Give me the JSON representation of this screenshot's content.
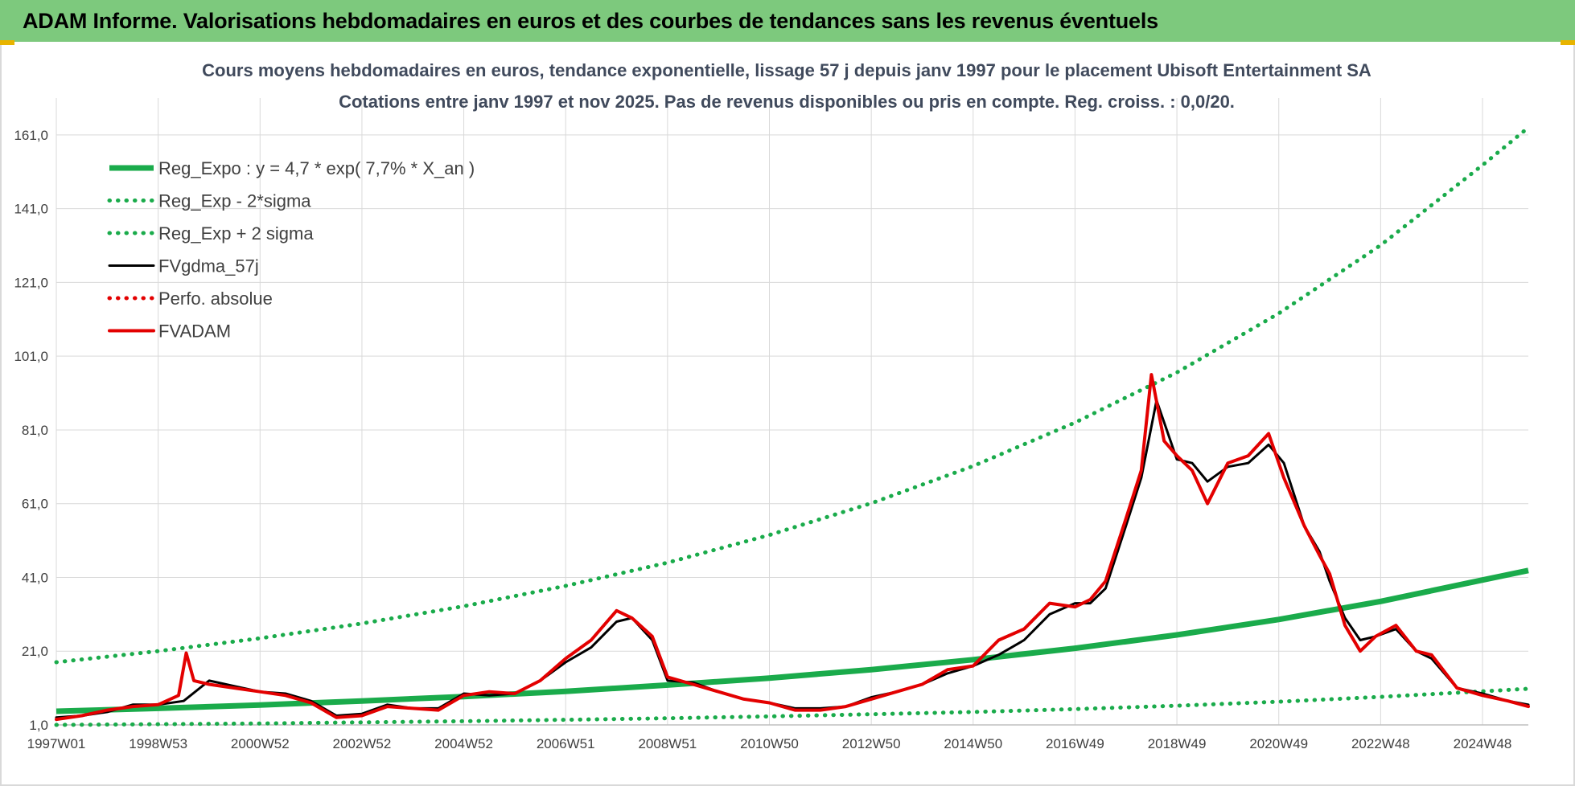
{
  "banner": {
    "title": "ADAM Informe. Valorisations hebdomadaires en euros et des courbes de tendances sans les revenus éventuels",
    "background": "#7dc97d"
  },
  "chart_data": {
    "type": "line",
    "title": "Cours moyens hebdomadaires en euros, tendance exponentielle, lissage 57 j depuis janv 1997  pour le placement Ubisoft Entertainment SA",
    "subtitle": "Cotations entre janv 1997 et nov 2025. Pas de revenus disponibles ou pris en compte. Reg. croiss. : 0,0/20.",
    "xlabel": "",
    "ylabel": "",
    "x_range": [
      1997.0,
      2025.9
    ],
    "ylim": [
      1,
      171
    ],
    "y_ticks": [
      "1,0",
      "21,0",
      "41,0",
      "61,0",
      "81,0",
      "101,0",
      "121,0",
      "141,0",
      "161,0"
    ],
    "y_tick_values": [
      1,
      21,
      41,
      61,
      81,
      101,
      121,
      141,
      161
    ],
    "x_ticks": [
      "1997W01",
      "1998W53",
      "2000W52",
      "2002W52",
      "2004W52",
      "2006W51",
      "2008W51",
      "2010W50",
      "2012W50",
      "2014W50",
      "2016W49",
      "2018W49",
      "2020W49",
      "2022W48",
      "2024W48"
    ],
    "x_tick_values": [
      1997.0,
      1999.0,
      2001.0,
      2003.0,
      2005.0,
      2007.0,
      2009.0,
      2011.0,
      2013.0,
      2015.0,
      2017.0,
      2019.0,
      2021.0,
      2023.0,
      2025.0
    ],
    "grid": true,
    "legend_position": "top-left",
    "series": [
      {
        "name": "Reg_Expo : y = 4,7 * exp( 7,7% *  X_an )",
        "style": "solid",
        "color": "#1aab4b",
        "x": [
          1997.0,
          1999.0,
          2001.0,
          2003.0,
          2005.0,
          2007.0,
          2009.0,
          2011.0,
          2013.0,
          2015.0,
          2017.0,
          2019.0,
          2021.0,
          2023.0,
          2025.0,
          2025.9
        ],
        "y": [
          4.7,
          5.5,
          6.4,
          7.5,
          8.7,
          10.1,
          11.8,
          13.7,
          16.0,
          18.7,
          21.8,
          25.4,
          29.6,
          34.5,
          40.3,
          42.9
        ]
      },
      {
        "name": "Reg_Exp - 2*sigma",
        "style": "dotted",
        "color": "#1aab4b",
        "x": [
          1997.0,
          1999.0,
          2001.0,
          2003.0,
          2005.0,
          2007.0,
          2009.0,
          2011.0,
          2013.0,
          2015.0,
          2017.0,
          2019.0,
          2021.0,
          2023.0,
          2025.0,
          2025.9
        ],
        "y": [
          1.0,
          1.2,
          1.4,
          1.7,
          2.0,
          2.4,
          2.8,
          3.3,
          3.9,
          4.5,
          5.3,
          6.2,
          7.3,
          8.6,
          10.1,
          10.8
        ]
      },
      {
        "name": "Reg_Exp + 2 sigma",
        "style": "dotted",
        "color": "#1aab4b",
        "x": [
          1997.0,
          1999.0,
          2001.0,
          2003.0,
          2005.0,
          2007.0,
          2009.0,
          2011.0,
          2013.0,
          2015.0,
          2017.0,
          2019.0,
          2021.0,
          2023.0,
          2025.0,
          2025.9
        ],
        "y": [
          18.0,
          21.0,
          24.5,
          28.5,
          33.2,
          38.7,
          45.0,
          52.5,
          61.1,
          71.2,
          83.0,
          96.6,
          112.6,
          131.1,
          152.8,
          163.0
        ]
      },
      {
        "name": "FVgdma_57j",
        "style": "solid",
        "color": "#000000",
        "x": [
          1997.0,
          1997.5,
          1998.0,
          1998.5,
          1999.0,
          1999.5,
          2000.0,
          2000.5,
          2001.0,
          2001.5,
          2002.0,
          2002.5,
          2003.0,
          2003.5,
          2004.0,
          2004.5,
          2005.0,
          2005.5,
          2006.0,
          2006.5,
          2007.0,
          2007.5,
          2008.0,
          2008.3,
          2008.7,
          2009.0,
          2009.5,
          2010.0,
          2010.5,
          2011.0,
          2011.5,
          2012.0,
          2012.5,
          2013.0,
          2013.5,
          2014.0,
          2014.5,
          2015.0,
          2015.5,
          2016.0,
          2016.5,
          2017.0,
          2017.3,
          2017.6,
          2018.0,
          2018.3,
          2018.6,
          2019.0,
          2019.3,
          2019.6,
          2020.0,
          2020.4,
          2020.8,
          2021.1,
          2021.5,
          2021.8,
          2022.0,
          2022.3,
          2022.6,
          2022.9,
          2023.3,
          2023.7,
          2024.0,
          2024.5,
          2025.0,
          2025.5,
          2025.9
        ],
        "y": [
          3.0,
          3.5,
          4.5,
          6.5,
          6.5,
          7.5,
          13.0,
          11.5,
          10.0,
          9.5,
          7.5,
          3.5,
          4.0,
          6.5,
          5.5,
          5.5,
          9.5,
          9.0,
          9.5,
          13.0,
          18.0,
          22.0,
          29.0,
          30.0,
          24.0,
          13.0,
          12.5,
          10.0,
          8.0,
          7.0,
          5.5,
          5.5,
          6.0,
          8.5,
          10.0,
          12.0,
          15.0,
          17.0,
          20.0,
          24.0,
          31.0,
          34.0,
          34.0,
          38.0,
          55.0,
          68.0,
          89.0,
          73.0,
          72.0,
          67.0,
          71.0,
          72.0,
          77.0,
          72.0,
          55.0,
          48.0,
          40.0,
          30.0,
          24.0,
          25.0,
          27.0,
          21.0,
          19.0,
          11.0,
          9.5,
          7.5,
          6.5
        ]
      },
      {
        "name": "Perfo. absolue",
        "style": "dotted",
        "color": "#e30000",
        "x": [],
        "y": []
      },
      {
        "name": "FVADAM",
        "style": "solid",
        "color": "#e30000",
        "x": [
          1997.0,
          1997.5,
          1998.0,
          1998.5,
          1999.0,
          1999.4,
          1999.55,
          1999.7,
          2000.0,
          2000.5,
          2001.0,
          2001.5,
          2002.0,
          2002.5,
          2003.0,
          2003.5,
          2004.0,
          2004.5,
          2005.0,
          2005.5,
          2006.0,
          2006.5,
          2007.0,
          2007.5,
          2008.0,
          2008.3,
          2008.7,
          2009.0,
          2009.5,
          2010.0,
          2010.5,
          2011.0,
          2011.5,
          2012.0,
          2012.5,
          2013.0,
          2013.5,
          2014.0,
          2014.5,
          2015.0,
          2015.5,
          2016.0,
          2016.5,
          2017.0,
          2017.3,
          2017.6,
          2018.0,
          2018.3,
          2018.5,
          2018.75,
          2019.0,
          2019.3,
          2019.6,
          2020.0,
          2020.4,
          2020.8,
          2021.1,
          2021.5,
          2021.8,
          2022.0,
          2022.3,
          2022.6,
          2022.9,
          2023.3,
          2023.7,
          2024.0,
          2024.5,
          2025.0,
          2025.5,
          2025.9
        ],
        "y": [
          2.5,
          3.5,
          5.0,
          6.0,
          6.5,
          9.0,
          20.5,
          13.0,
          12.0,
          11.0,
          10.0,
          9.0,
          7.0,
          3.0,
          3.5,
          6.0,
          5.5,
          5.0,
          9.0,
          10.0,
          9.5,
          13.0,
          19.0,
          24.0,
          32.0,
          30.0,
          25.0,
          14.0,
          12.0,
          10.0,
          8.0,
          7.0,
          5.0,
          5.0,
          6.0,
          8.0,
          10.0,
          12.0,
          16.0,
          17.0,
          24.0,
          27.0,
          34.0,
          33.0,
          35.0,
          40.0,
          57.0,
          70.0,
          96.0,
          78.0,
          74.0,
          70.0,
          61.0,
          72.0,
          74.0,
          80.0,
          68.0,
          55.0,
          47.0,
          42.0,
          28.0,
          21.0,
          25.0,
          28.0,
          21.0,
          20.0,
          11.0,
          9.0,
          7.5,
          6.0
        ]
      }
    ]
  }
}
